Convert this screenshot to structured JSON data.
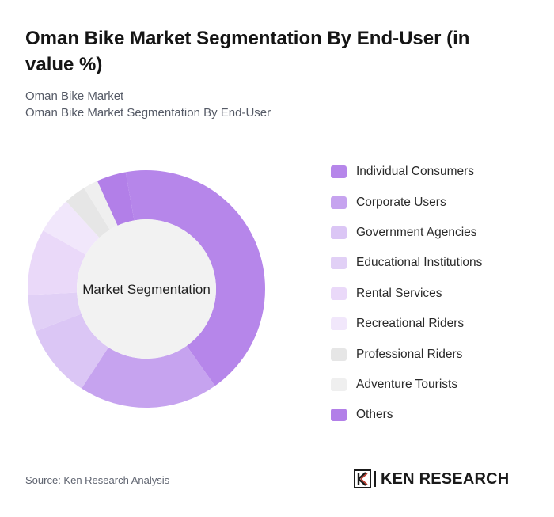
{
  "header": {
    "title": "Oman Bike Market Segmentation By End-User (in value %)",
    "subtitle_line1": "Oman Bike Market",
    "subtitle_line2": "Oman Bike Market Segmentation By End-User"
  },
  "chart_data": {
    "type": "pie",
    "variant": "donut",
    "center_label": "Market Segmentation",
    "categories": [
      "Individual Consumers",
      "Corporate Users",
      "Government Agencies",
      "Educational Institutions",
      "Rental Services",
      "Recreational Riders",
      "Professional Riders",
      "Adventure Tourists",
      "Others"
    ],
    "values": [
      43,
      19,
      10,
      5,
      9,
      5,
      3,
      2,
      4
    ],
    "colors": [
      "#b686ea",
      "#c6a3ef",
      "#dbc6f5",
      "#e1d0f6",
      "#ead9f9",
      "#f1e7fb",
      "#e6e6e6",
      "#efefef",
      "#b27fe8"
    ],
    "legend_position": "right",
    "slice_order": [
      "Others",
      "Individual Consumers",
      "Corporate Users",
      "Government Agencies",
      "Educational Institutions",
      "Rental Services",
      "Recreational Riders",
      "Professional Riders",
      "Adventure Tourists"
    ]
  },
  "footer": {
    "source": "Source: Ken Research Analysis",
    "brand_name": "KEN RESEARCH",
    "brand_logo_icon": "ken-research-logo-icon"
  }
}
